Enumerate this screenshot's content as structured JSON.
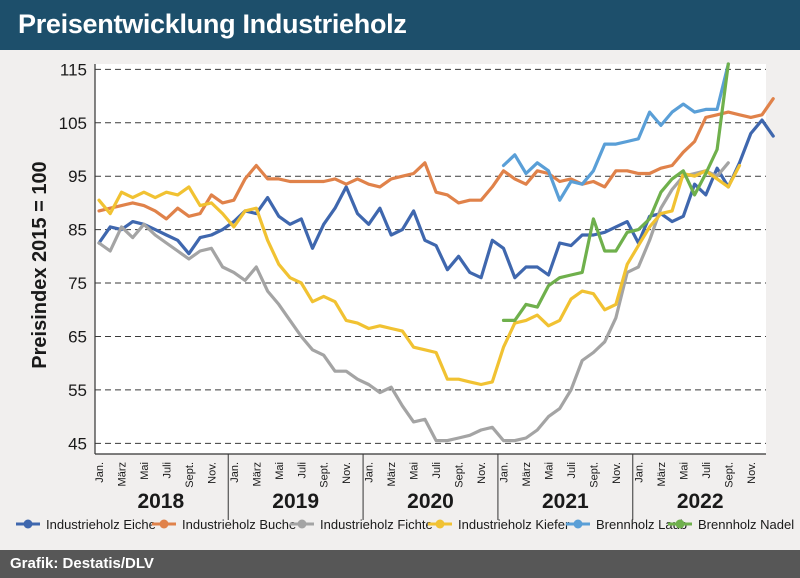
{
  "header": {
    "title": "Preisentwicklung Industrieholz"
  },
  "footer": {
    "source": "Grafik: Destatis/DLV"
  },
  "chart_data": {
    "type": "line",
    "title": "Preisentwicklung Industrieholz",
    "ylabel": "Preisindex 2015 = 100",
    "xlabel": "",
    "ylim": [
      43,
      116
    ],
    "yticks": [
      45,
      55,
      65,
      75,
      85,
      95,
      105,
      115
    ],
    "grid": true,
    "legend": "bottom",
    "month_labels": [
      "Jan.",
      "März",
      "Mai",
      "Juli",
      "Sept.",
      "Nov."
    ],
    "years": [
      "2018",
      "2019",
      "2020",
      "2021",
      "2022"
    ],
    "x_start": "2018-01",
    "series": [
      {
        "name": "Industrieholz Eiche",
        "color": "#3f67ae",
        "start": 0,
        "values": [
          82.5,
          85.5,
          85,
          86.5,
          86,
          85,
          84,
          83,
          80.5,
          83.5,
          84,
          85,
          86.5,
          88.5,
          88,
          91,
          87.5,
          86,
          87,
          81.5,
          86,
          89,
          93,
          88,
          86,
          89,
          84,
          85,
          88.5,
          83,
          82,
          77.5,
          80,
          77,
          76,
          83,
          81.5,
          76,
          78,
          78,
          76.5,
          82.5,
          82,
          84,
          84,
          84.5,
          85.5,
          86.5,
          82.5,
          87.5,
          88,
          86.5,
          87.5,
          93.5,
          91.5,
          96.5,
          93,
          97.5,
          103,
          105.5,
          102.5
        ]
      },
      {
        "name": "Industrieholz Buche",
        "color": "#e0824a",
        "start": 0,
        "values": [
          88.5,
          89,
          89.5,
          90,
          89.5,
          88.5,
          87,
          89,
          87.5,
          88,
          91.5,
          90,
          90.5,
          94.5,
          97,
          94.5,
          94.5,
          94,
          94,
          94,
          94,
          94.5,
          93.5,
          94.5,
          93.5,
          93,
          94.5,
          95,
          95.5,
          97.5,
          92,
          91.5,
          90,
          90.5,
          90.5,
          93,
          96,
          94.5,
          93.5,
          96,
          95.5,
          94,
          94.5,
          93.5,
          94,
          93,
          96,
          96,
          95.5,
          95.5,
          96.5,
          97,
          99.5,
          101.5,
          106,
          106.5,
          107,
          106.5,
          106,
          106.5,
          109.5
        ]
      },
      {
        "name": "Industrieholz Fichte",
        "color": "#a4a4a4",
        "start": 0,
        "values": [
          82.5,
          81,
          85.5,
          83.5,
          86,
          84,
          82.5,
          81,
          79.5,
          81,
          81.5,
          78,
          77,
          75.5,
          78,
          73.5,
          71,
          68,
          65,
          62.5,
          61.5,
          58.5,
          58.5,
          57,
          56,
          54.5,
          55.5,
          52,
          49,
          49.5,
          45.5,
          45.5,
          46,
          46.5,
          47.5,
          48,
          45.5,
          45.5,
          46,
          47.5,
          50,
          51.5,
          55,
          60.5,
          62,
          64,
          68.5,
          77,
          78,
          83,
          89,
          92.5,
          95,
          95.5,
          96,
          95,
          97.5
        ]
      },
      {
        "name": "Industrieholz Kiefer",
        "color": "#f1c232",
        "start": 0,
        "values": [
          90.5,
          88,
          92,
          91,
          92,
          91,
          92,
          91.5,
          93,
          89.5,
          90,
          88,
          85.5,
          88.5,
          89,
          83,
          78.5,
          76,
          75,
          71.5,
          72.5,
          71.5,
          68,
          67.5,
          66.5,
          67,
          66.5,
          66,
          63,
          62.5,
          62,
          57,
          57,
          56.5,
          56,
          56.5,
          63,
          67.5,
          68,
          69,
          67,
          68,
          72,
          73.5,
          73,
          70,
          71,
          78.5,
          82,
          85.5,
          88,
          88.5,
          95.5,
          95,
          96,
          94.5,
          93,
          97
        ]
      },
      {
        "name": "Brennholz Laub",
        "color": "#5a9fd7",
        "start": 36,
        "values": [
          97,
          99,
          95.5,
          97.5,
          96,
          90.5,
          94,
          93.5,
          96,
          101,
          101,
          101.5,
          102,
          107,
          104.5,
          107,
          108.5,
          107,
          107.5,
          107.5,
          116
        ]
      },
      {
        "name": "Brennholz Nadel",
        "color": "#6fb04c",
        "start": 36,
        "values": [
          68,
          68,
          71,
          70.5,
          74.5,
          76,
          76.5,
          77,
          87,
          81,
          81,
          84.5,
          85,
          87,
          92,
          94.5,
          96,
          91.5,
          95.5,
          100,
          116
        ]
      }
    ]
  }
}
